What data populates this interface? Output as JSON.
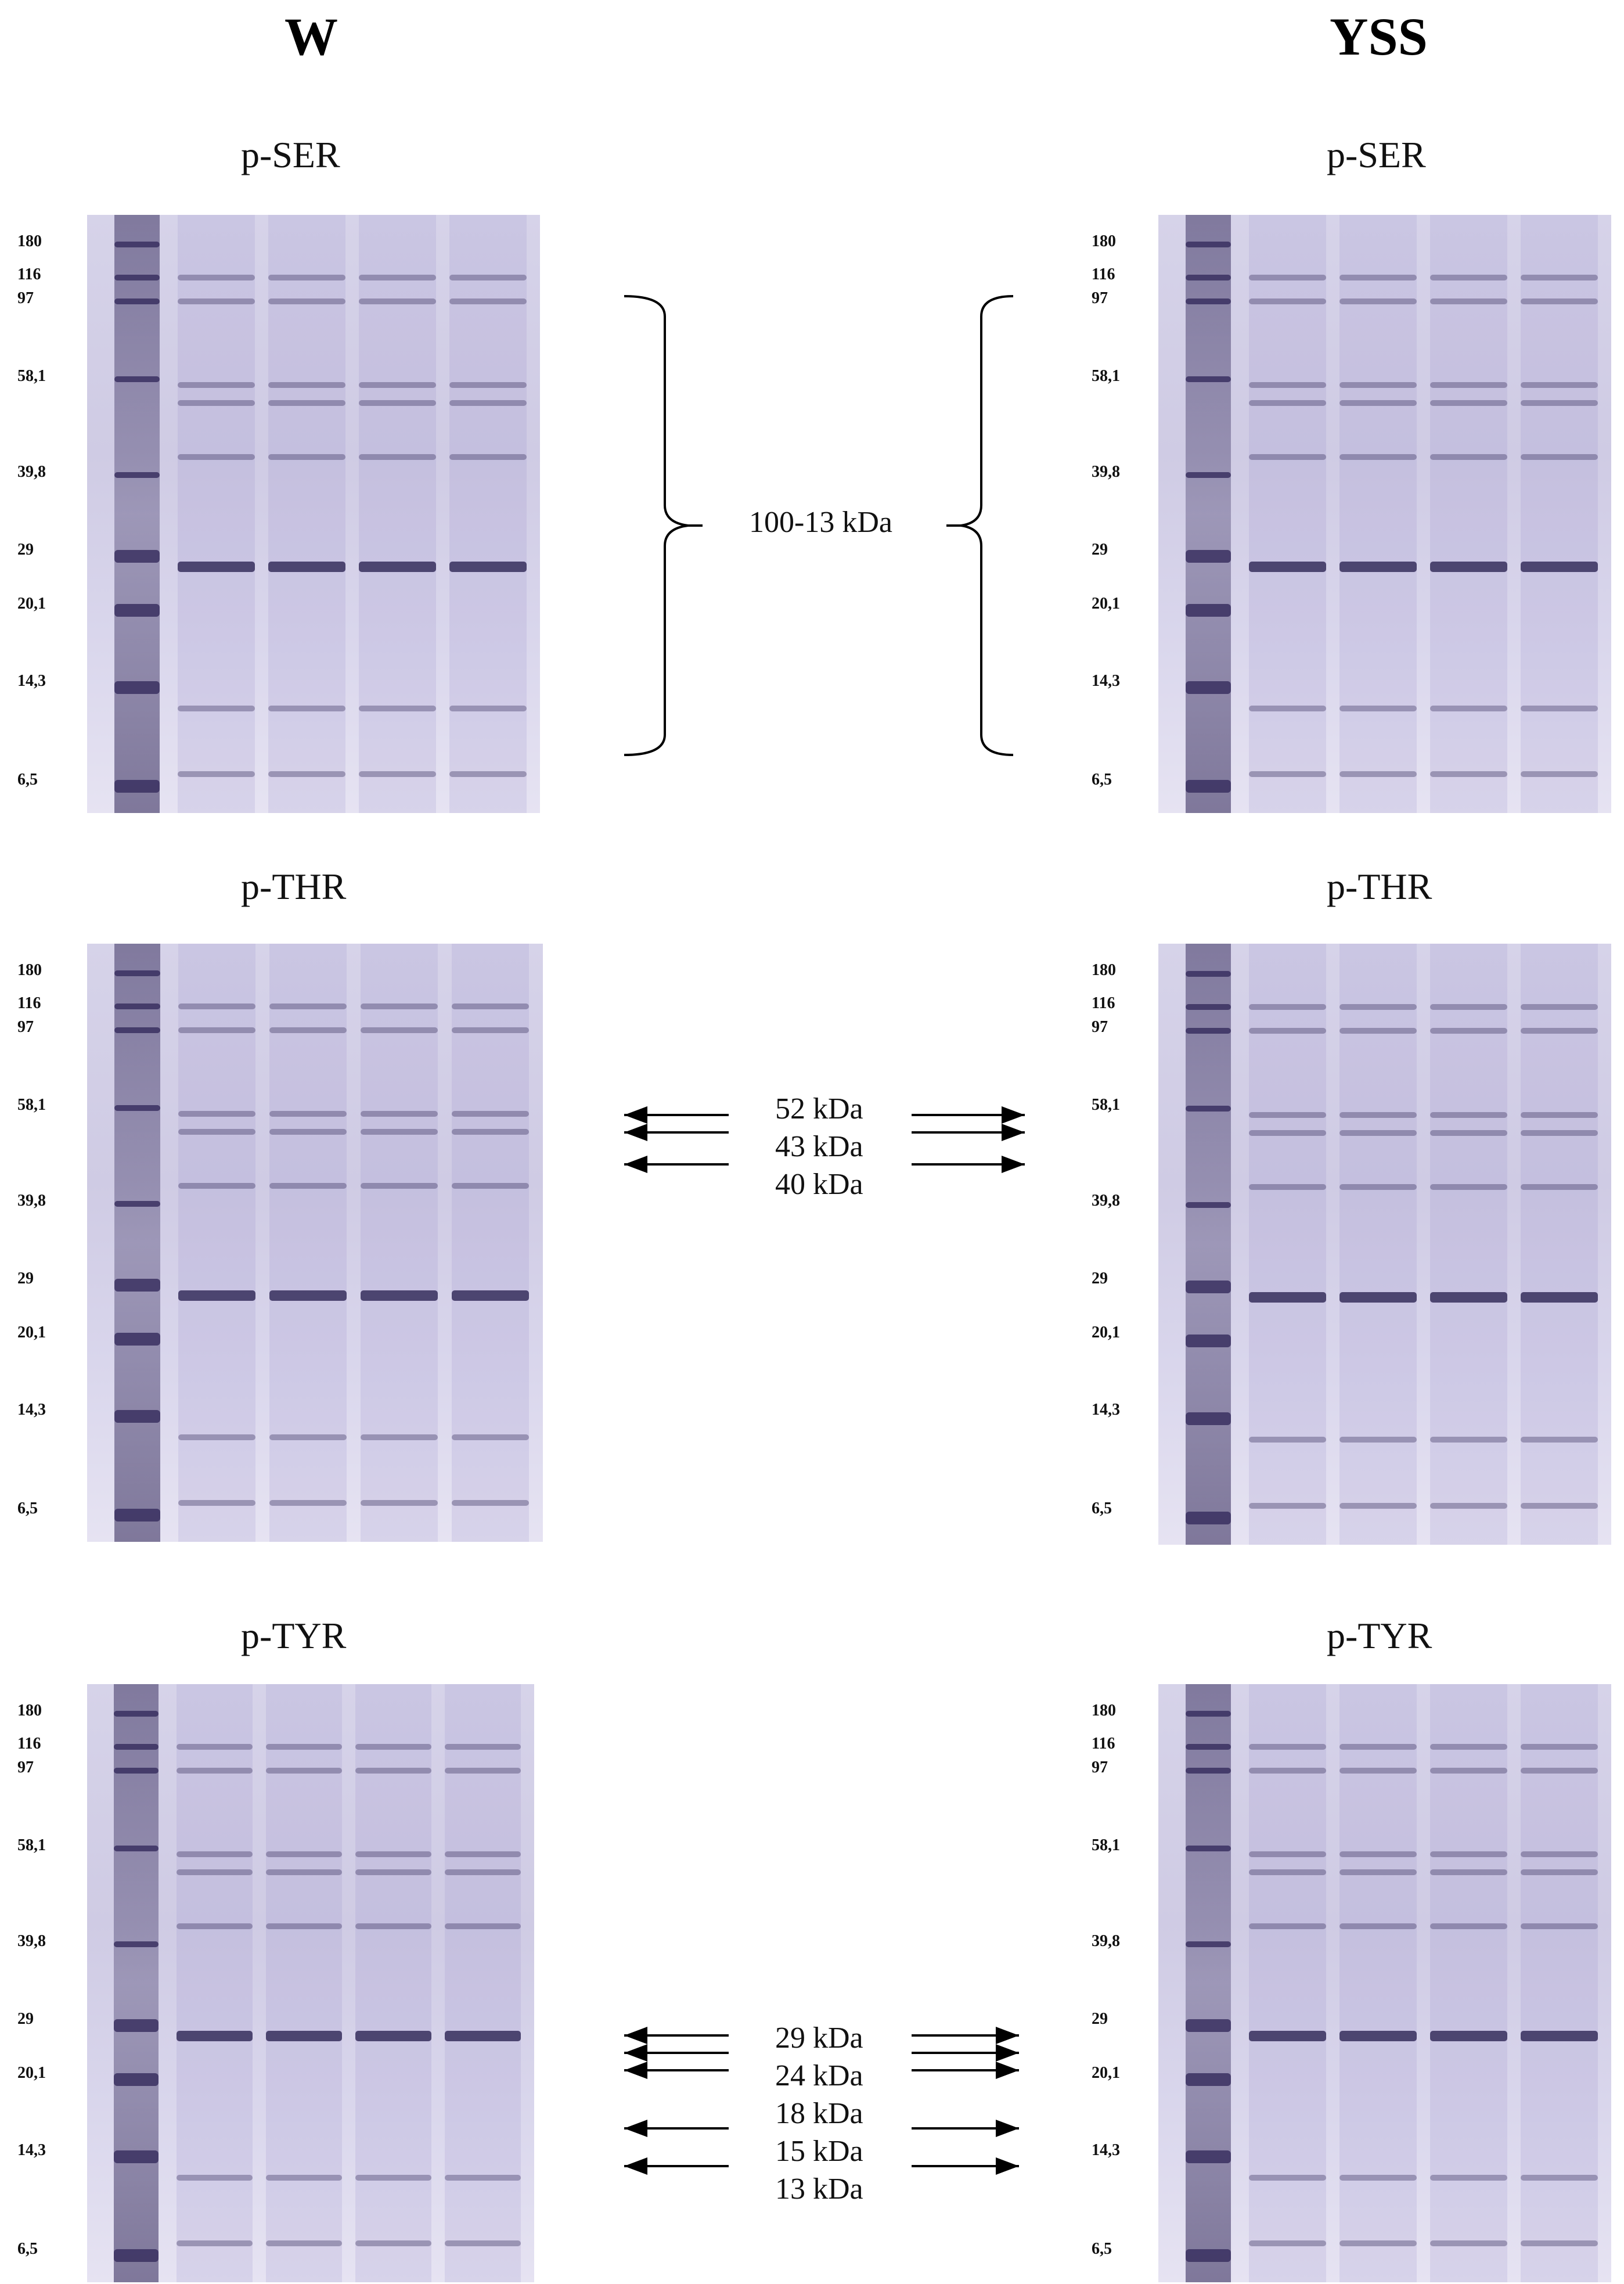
{
  "columns": [
    {
      "id": "w",
      "title": "W"
    },
    {
      "id": "yss",
      "title": "YSS"
    }
  ],
  "panels": [
    {
      "id": "ser",
      "title": "p-SER"
    },
    {
      "id": "thr",
      "title": "p-THR"
    },
    {
      "id": "tyr",
      "title": "p-TYR"
    }
  ],
  "markers": [
    "180",
    "116",
    "97",
    "58,1",
    "39,8",
    "29",
    "20,1",
    "14,3",
    "6,5"
  ],
  "annotations": {
    "ser": [
      "100-13 kDa"
    ],
    "thr": [
      "52 kDa",
      "43 kDa",
      "40 kDa"
    ],
    "tyr": [
      "29 kDa",
      "24 kDa",
      "18 kDa",
      "15 kDa",
      "13 kDa"
    ]
  },
  "colors": {
    "gel_background": "#d4d0e8",
    "band": "#2d2452",
    "ladder": "#3a3060"
  }
}
